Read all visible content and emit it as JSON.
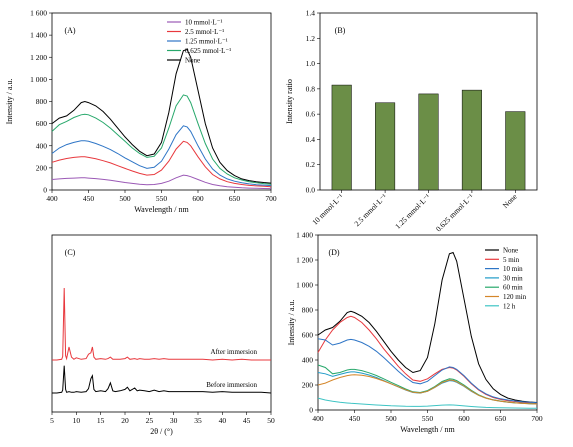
{
  "chart_data": [
    {
      "panel": "(A)",
      "type": "line",
      "xlabel": "Wavelength / nm",
      "ylabel": "Intensity / a.u.",
      "xlim": [
        400,
        700
      ],
      "ylim": [
        0,
        1600
      ],
      "x_ticks": [
        "400",
        "450",
        "500",
        "550",
        "600",
        "650",
        "700"
      ],
      "y_ticks": [
        "0",
        "200",
        "400",
        "600",
        "800",
        "1 000",
        "1 200",
        "1 400",
        "1 600"
      ],
      "legend_position": "top-right",
      "x": [
        400,
        410,
        420,
        430,
        440,
        445,
        450,
        460,
        470,
        480,
        490,
        500,
        510,
        520,
        530,
        540,
        550,
        560,
        570,
        580,
        585,
        590,
        600,
        610,
        620,
        630,
        640,
        650,
        660,
        670,
        680,
        690,
        700
      ],
      "series": [
        {
          "name": "10 mmol·L⁻¹",
          "color": "#9b59b6",
          "values": [
            95,
            100,
            105,
            108,
            110,
            110,
            108,
            103,
            96,
            88,
            78,
            68,
            60,
            52,
            48,
            50,
            60,
            80,
            110,
            135,
            130,
            120,
            95,
            70,
            50,
            38,
            30,
            24,
            20,
            17,
            15,
            14,
            13
          ]
        },
        {
          "name": "2.5 mmol·L⁻¹",
          "color": "#e8383d",
          "values": [
            250,
            270,
            285,
            295,
            300,
            300,
            295,
            282,
            265,
            245,
            220,
            195,
            172,
            150,
            135,
            140,
            180,
            260,
            370,
            440,
            430,
            400,
            300,
            210,
            140,
            100,
            75,
            60,
            50,
            42,
            37,
            33,
            30
          ]
        },
        {
          "name": "1.25 mmol·L⁻¹",
          "color": "#2e75c6",
          "values": [
            330,
            380,
            410,
            430,
            445,
            445,
            440,
            420,
            395,
            365,
            330,
            290,
            255,
            220,
            195,
            205,
            260,
            370,
            500,
            580,
            570,
            530,
            400,
            280,
            190,
            135,
            100,
            80,
            65,
            55,
            48,
            44,
            40
          ]
        },
        {
          "name": "0.625 mmol·L⁻¹",
          "color": "#27a86b",
          "values": [
            530,
            590,
            620,
            655,
            680,
            685,
            680,
            650,
            610,
            560,
            500,
            440,
            380,
            330,
            295,
            305,
            380,
            560,
            760,
            860,
            850,
            790,
            600,
            420,
            280,
            195,
            145,
            110,
            90,
            75,
            65,
            58,
            52
          ]
        },
        {
          "name": "None",
          "color": "#000000",
          "values": [
            600,
            650,
            670,
            720,
            790,
            800,
            790,
            760,
            710,
            640,
            560,
            480,
            410,
            350,
            310,
            325,
            430,
            700,
            1050,
            1260,
            1270,
            1200,
            900,
            600,
            380,
            250,
            175,
            130,
            100,
            85,
            75,
            68,
            62
          ]
        }
      ]
    },
    {
      "panel": "(B)",
      "type": "bar",
      "ylabel": "Intensity ratio",
      "ylim": [
        0.0,
        1.4
      ],
      "y_ticks": [
        "0.0",
        "0.2",
        "0.4",
        "0.6",
        "0.8",
        "1.0",
        "1.2",
        "1.4"
      ],
      "categories": [
        "10 mmol·L⁻¹",
        "2.5 mmol·L⁻¹",
        "1.25 mmol·L⁻¹",
        "0.625 mmol·L⁻¹",
        "None"
      ],
      "values": [
        0.83,
        0.69,
        0.76,
        0.79,
        0.62
      ],
      "bar_color": "#6b8e47"
    },
    {
      "panel": "(C)",
      "type": "line",
      "xlabel": "2θ / (°)",
      "xlim": [
        5,
        50
      ],
      "x_ticks": [
        "5",
        "10",
        "15",
        "20",
        "25",
        "30",
        "35",
        "40",
        "45",
        "50"
      ],
      "annotations": [
        "After immersion",
        "Before immersion"
      ],
      "x": [
        5,
        6,
        7,
        7.2,
        7.5,
        7.8,
        8,
        8.5,
        9,
        9.5,
        10,
        11,
        12,
        12.5,
        13,
        13.3,
        13.6,
        14,
        15,
        16,
        16.5,
        17,
        17.5,
        18,
        19,
        20,
        20.5,
        21,
        22,
        22.5,
        23,
        24,
        25,
        26,
        27,
        28,
        29,
        30,
        32,
        34,
        36,
        38,
        40,
        42,
        44,
        46,
        48,
        50
      ],
      "series": [
        {
          "color": "#e8383d",
          "values": [
            0,
            0,
            1,
            5,
            100,
            6,
            2,
            18,
            4,
            1,
            3,
            1,
            2,
            8,
            10,
            18,
            4,
            1,
            2,
            1,
            2,
            4,
            1,
            1,
            1,
            2,
            4,
            1,
            2,
            1,
            2,
            1,
            1,
            2,
            1,
            2,
            1,
            1,
            1,
            1,
            1,
            0,
            1,
            0,
            1,
            0,
            0,
            0
          ]
        },
        {
          "color": "#000000",
          "values": [
            0,
            0,
            1,
            4,
            38,
            5,
            1,
            2,
            1,
            1,
            2,
            1,
            2,
            6,
            20,
            24,
            5,
            2,
            3,
            2,
            6,
            14,
            3,
            2,
            3,
            5,
            8,
            3,
            7,
            3,
            4,
            3,
            2,
            4,
            2,
            3,
            2,
            2,
            2,
            2,
            2,
            1,
            2,
            1,
            1,
            1,
            1,
            0
          ]
        }
      ]
    },
    {
      "panel": "(D)",
      "type": "line",
      "xlabel": "Wavelength / nm",
      "ylabel": "Intensity / a.u.",
      "xlim": [
        400,
        700
      ],
      "ylim": [
        0,
        1400
      ],
      "x_ticks": [
        "400",
        "450",
        "500",
        "550",
        "600",
        "650",
        "700"
      ],
      "y_ticks": [
        "0",
        "200",
        "400",
        "600",
        "800",
        "1 000",
        "1 200",
        "1 400"
      ],
      "legend_position": "top-left",
      "x": [
        400,
        410,
        420,
        430,
        440,
        445,
        450,
        460,
        470,
        480,
        490,
        500,
        510,
        520,
        530,
        540,
        550,
        560,
        570,
        580,
        585,
        590,
        600,
        610,
        620,
        630,
        640,
        650,
        660,
        670,
        680,
        690,
        700
      ],
      "series": [
        {
          "name": "None",
          "color": "#000000",
          "values": [
            600,
            640,
            660,
            710,
            780,
            790,
            780,
            750,
            700,
            630,
            550,
            470,
            400,
            340,
            300,
            315,
            420,
            690,
            1040,
            1250,
            1260,
            1190,
            890,
            590,
            370,
            245,
            170,
            125,
            95,
            80,
            70,
            64,
            60
          ]
        },
        {
          "name": "5 min",
          "color": "#e8383d",
          "values": [
            460,
            560,
            640,
            700,
            740,
            750,
            740,
            700,
            640,
            570,
            490,
            420,
            350,
            290,
            240,
            230,
            250,
            290,
            325,
            340,
            335,
            320,
            270,
            210,
            160,
            125,
            100,
            85,
            75,
            68,
            62,
            58,
            55
          ]
        },
        {
          "name": "10 min",
          "color": "#2e75c6",
          "values": [
            570,
            560,
            520,
            535,
            560,
            565,
            560,
            540,
            510,
            470,
            420,
            365,
            310,
            260,
            220,
            210,
            230,
            275,
            320,
            345,
            340,
            325,
            275,
            215,
            165,
            130,
            105,
            90,
            80,
            72,
            66,
            62,
            58
          ]
        },
        {
          "name": "30 min",
          "color": "#1f9bc8",
          "values": [
            300,
            290,
            270,
            285,
            300,
            305,
            305,
            295,
            280,
            260,
            235,
            210,
            185,
            160,
            140,
            135,
            150,
            180,
            215,
            235,
            232,
            222,
            190,
            150,
            118,
            95,
            80,
            70,
            62,
            57,
            53,
            50,
            48
          ]
        },
        {
          "name": "60 min",
          "color": "#27a86b",
          "values": [
            360,
            340,
            290,
            300,
            320,
            325,
            325,
            315,
            298,
            276,
            250,
            222,
            195,
            168,
            146,
            140,
            155,
            188,
            228,
            250,
            246,
            235,
            200,
            158,
            122,
            98,
            82,
            72,
            64,
            58,
            54,
            51,
            49
          ]
        },
        {
          "name": "120 min",
          "color": "#d4862a",
          "values": [
            200,
            215,
            240,
            260,
            275,
            280,
            282,
            278,
            268,
            252,
            232,
            210,
            186,
            162,
            142,
            136,
            150,
            182,
            220,
            240,
            237,
            226,
            192,
            152,
            118,
            95,
            80,
            70,
            63,
            57,
            53,
            50,
            48
          ]
        },
        {
          "name": "12 h",
          "color": "#3ec4c4",
          "values": [
            95,
            80,
            70,
            62,
            56,
            54,
            52,
            48,
            44,
            40,
            37,
            34,
            32,
            30,
            29,
            29,
            31,
            35,
            39,
            41,
            40,
            38,
            33,
            28,
            24,
            21,
            19,
            18,
            17,
            16,
            15,
            14,
            14
          ]
        }
      ]
    }
  ]
}
